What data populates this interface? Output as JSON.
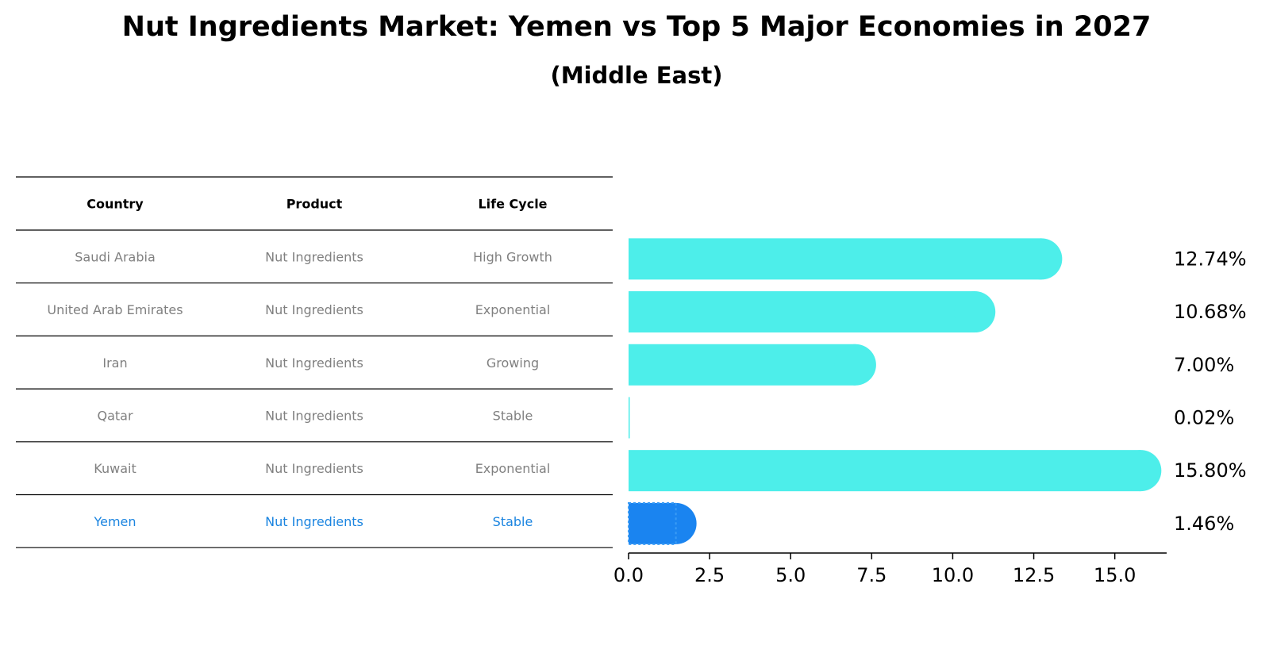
{
  "title": "Nut Ingredients Market: Yemen vs Top 5 Major Economies in 2027",
  "subtitle": "(Middle East)",
  "table": {
    "headers": [
      "Country",
      "Product",
      "Life Cycle"
    ],
    "rows": [
      {
        "country": "Saudi Arabia",
        "product": "Nut Ingredients",
        "life_cycle": "High Growth",
        "highlight": false
      },
      {
        "country": "United Arab Emirates",
        "product": "Nut Ingredients",
        "life_cycle": "Exponential",
        "highlight": false
      },
      {
        "country": "Iran",
        "product": "Nut Ingredients",
        "life_cycle": "Growing",
        "highlight": false
      },
      {
        "country": "Qatar",
        "product": "Nut Ingredients",
        "life_cycle": "Stable",
        "highlight": false
      },
      {
        "country": "Kuwait",
        "product": "Nut Ingredients",
        "life_cycle": "Exponential",
        "highlight": false
      },
      {
        "country": "Yemen",
        "product": "Nut Ingredients",
        "life_cycle": "Stable",
        "highlight": true
      }
    ]
  },
  "colors": {
    "bar": "#4deeea",
    "highlight_bar": "#1a84f0",
    "highlight_text": "#1a84e0",
    "row_text": "#808080",
    "header_text": "#000000",
    "line": "#000000"
  },
  "chart_data": {
    "type": "bar",
    "orientation": "horizontal",
    "categories": [
      "Saudi Arabia",
      "United Arab Emirates",
      "Iran",
      "Qatar",
      "Kuwait",
      "Yemen"
    ],
    "values": [
      12.74,
      10.68,
      7.0,
      0.02,
      15.8,
      1.46
    ],
    "value_labels": [
      "12.74%",
      "10.68%",
      "7.00%",
      "0.02%",
      "15.80%",
      "1.46%"
    ],
    "highlight": "Yemen",
    "xlim": [
      0,
      16.6
    ],
    "xticks": [
      0.0,
      2.5,
      5.0,
      7.5,
      10.0,
      12.5,
      15.0
    ],
    "xtick_labels": [
      "0.0",
      "2.5",
      "5.0",
      "7.5",
      "10.0",
      "12.5",
      "15.0"
    ],
    "xlabel": "",
    "ylabel": "",
    "grid": false
  }
}
